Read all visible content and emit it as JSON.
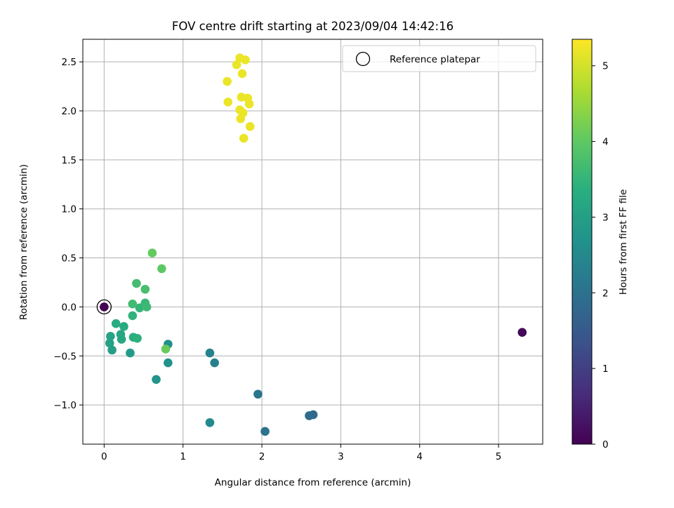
{
  "chart_data": {
    "type": "scatter",
    "title": "FOV centre drift starting at 2023/09/04 14:42:16",
    "xlabel": "Angular distance from reference (arcmin)",
    "ylabel": "Rotation from reference (arcmin)",
    "xlim": [
      -0.27,
      5.56
    ],
    "ylim": [
      -1.4,
      2.73
    ],
    "xticks": [
      0,
      1,
      2,
      3,
      4,
      5
    ],
    "xtick_labels": [
      "0",
      "1",
      "2",
      "3",
      "4",
      "5"
    ],
    "yticks": [
      -1.0,
      -0.5,
      0.0,
      0.5,
      1.0,
      1.5,
      2.0,
      2.5
    ],
    "ytick_labels": [
      "−1.0",
      "−0.5",
      "0.0",
      "0.5",
      "1.0",
      "1.5",
      "2.0",
      "2.5"
    ],
    "grid": true,
    "legend": {
      "position": "top-right",
      "entries": [
        "Reference platepar"
      ]
    },
    "reference_point": {
      "x": 0.0,
      "y": 0.0
    },
    "colorbar": {
      "label": "Hours from first FF file",
      "range": [
        0,
        5.35
      ],
      "ticks": [
        0,
        1,
        2,
        3,
        4,
        5
      ],
      "tick_labels": [
        "0",
        "1",
        "2",
        "3",
        "4",
        "5"
      ],
      "colormap": "viridis"
    },
    "points": [
      {
        "x": 0.0,
        "y": 0.0,
        "c": 0.0
      },
      {
        "x": 5.3,
        "y": -0.26,
        "c": 0.1
      },
      {
        "x": 2.65,
        "y": -1.1,
        "c": 1.8
      },
      {
        "x": 2.6,
        "y": -1.11,
        "c": 1.85
      },
      {
        "x": 2.04,
        "y": -1.27,
        "c": 2.0
      },
      {
        "x": 1.95,
        "y": -0.89,
        "c": 2.05
      },
      {
        "x": 1.4,
        "y": -0.57,
        "c": 2.3
      },
      {
        "x": 1.34,
        "y": -0.47,
        "c": 2.35
      },
      {
        "x": 1.34,
        "y": -1.18,
        "c": 2.5
      },
      {
        "x": 0.81,
        "y": -0.38,
        "c": 2.65
      },
      {
        "x": 0.81,
        "y": -0.57,
        "c": 2.7
      },
      {
        "x": 0.66,
        "y": -0.74,
        "c": 2.75
      },
      {
        "x": 0.33,
        "y": -0.47,
        "c": 2.9
      },
      {
        "x": 0.1,
        "y": -0.44,
        "c": 3.0
      },
      {
        "x": 0.07,
        "y": -0.37,
        "c": 3.05
      },
      {
        "x": 0.08,
        "y": -0.3,
        "c": 3.1
      },
      {
        "x": 0.21,
        "y": -0.28,
        "c": 3.15
      },
      {
        "x": 0.22,
        "y": -0.33,
        "c": 3.2
      },
      {
        "x": 0.25,
        "y": -0.2,
        "c": 3.25
      },
      {
        "x": 0.15,
        "y": -0.17,
        "c": 3.3
      },
      {
        "x": 0.37,
        "y": -0.31,
        "c": 3.35
      },
      {
        "x": 0.42,
        "y": -0.32,
        "c": 3.4
      },
      {
        "x": 0.36,
        "y": -0.09,
        "c": 3.45
      },
      {
        "x": 0.45,
        "y": -0.01,
        "c": 3.5
      },
      {
        "x": 0.52,
        "y": 0.04,
        "c": 3.55
      },
      {
        "x": 0.54,
        "y": 0.0,
        "c": 3.6
      },
      {
        "x": 0.36,
        "y": 0.03,
        "c": 3.65
      },
      {
        "x": 0.41,
        "y": 0.24,
        "c": 3.7
      },
      {
        "x": 0.52,
        "y": 0.18,
        "c": 3.75
      },
      {
        "x": 0.73,
        "y": 0.39,
        "c": 4.0
      },
      {
        "x": 0.61,
        "y": 0.55,
        "c": 4.05
      },
      {
        "x": 0.78,
        "y": -0.43,
        "c": 4.1
      },
      {
        "x": 1.56,
        "y": 2.3,
        "c": 5.2
      },
      {
        "x": 1.57,
        "y": 2.09,
        "c": 5.2
      },
      {
        "x": 1.68,
        "y": 2.47,
        "c": 5.2
      },
      {
        "x": 1.72,
        "y": 2.54,
        "c": 5.2
      },
      {
        "x": 1.79,
        "y": 2.52,
        "c": 5.2
      },
      {
        "x": 1.75,
        "y": 2.38,
        "c": 5.2
      },
      {
        "x": 1.74,
        "y": 2.14,
        "c": 5.2
      },
      {
        "x": 1.82,
        "y": 2.13,
        "c": 5.2
      },
      {
        "x": 1.84,
        "y": 2.07,
        "c": 5.2
      },
      {
        "x": 1.72,
        "y": 2.01,
        "c": 5.2
      },
      {
        "x": 1.76,
        "y": 1.98,
        "c": 5.2
      },
      {
        "x": 1.73,
        "y": 1.92,
        "c": 5.2
      },
      {
        "x": 1.85,
        "y": 1.84,
        "c": 5.2
      },
      {
        "x": 1.77,
        "y": 1.72,
        "c": 5.2
      }
    ]
  }
}
